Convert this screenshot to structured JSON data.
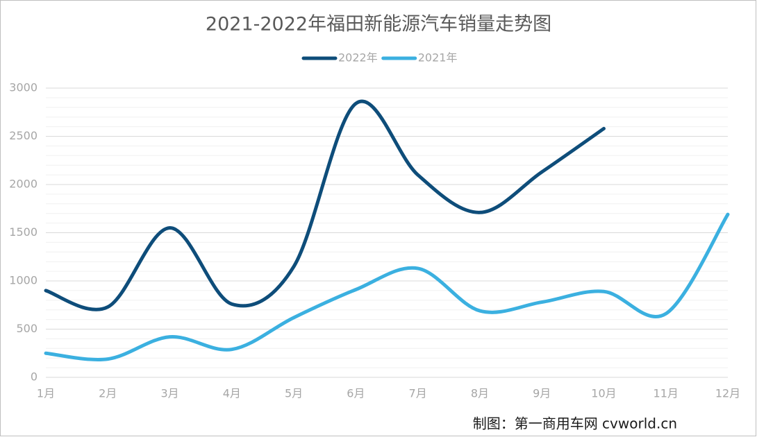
{
  "chart_data": {
    "type": "line",
    "title": "2021-2022年福田新能源汽车销量走势图",
    "categories": [
      "1月",
      "2月",
      "3月",
      "4月",
      "5月",
      "6月",
      "7月",
      "8月",
      "9月",
      "10月",
      "11月",
      "12月"
    ],
    "series": [
      {
        "name": "2022年",
        "color": "#0e4d7a",
        "values": [
          900,
          730,
          1550,
          760,
          1150,
          2840,
          2100,
          1710,
          2130,
          2580,
          null,
          null
        ]
      },
      {
        "name": "2021年",
        "color": "#3bb0e0",
        "values": [
          250,
          190,
          420,
          290,
          620,
          910,
          1130,
          690,
          780,
          890,
          660,
          1690
        ]
      }
    ],
    "ylim": [
      0,
      3000
    ],
    "yticks": [
      0,
      500,
      1000,
      1500,
      2000,
      2500,
      3000
    ],
    "grid": true,
    "smooth": true,
    "legend": "top",
    "source": "制图：第一商用车网 cvworld.cn"
  }
}
